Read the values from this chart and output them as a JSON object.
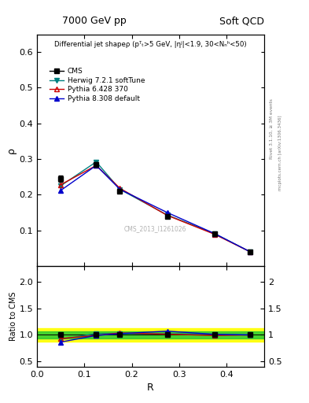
{
  "title_top": "7000 GeV pp",
  "title_right": "Soft QCD",
  "right_label_main": "Rivet 3.1.10, ≥ 3M events",
  "right_label_main2": "mcplots.cern.ch [arXiv:1306.3436]",
  "main_title": "Differential jet shapeρ (pᵀₜ>5 GeV, |ηʲ|<1.9, 30<Nₙʰ<50)",
  "xlabel": "R",
  "ylabel_main": "ρ",
  "ylabel_ratio": "Ratio to CMS",
  "watermark": "CMS_2013_I1261026",
  "x_values": [
    0.05,
    0.125,
    0.175,
    0.275,
    0.375,
    0.45
  ],
  "cms_y": [
    0.245,
    0.285,
    0.21,
    0.14,
    0.09,
    0.04
  ],
  "cms_yerr": [
    0.008,
    0.006,
    0.005,
    0.004,
    0.003,
    0.003
  ],
  "herwig_y": [
    0.225,
    0.292,
    0.215,
    0.143,
    0.091,
    0.04
  ],
  "pythia6_y": [
    0.228,
    0.282,
    0.218,
    0.142,
    0.089,
    0.04
  ],
  "pythia8_y": [
    0.212,
    0.282,
    0.215,
    0.15,
    0.091,
    0.04
  ],
  "herwig_ratio": [
    0.918,
    1.025,
    1.024,
    1.021,
    1.011,
    1.0
  ],
  "pythia6_ratio": [
    0.931,
    0.99,
    1.038,
    1.014,
    0.989,
    1.0
  ],
  "pythia8_ratio": [
    0.865,
    0.99,
    1.024,
    1.071,
    1.011,
    1.0
  ],
  "cms_color": "#000000",
  "herwig_color": "#008080",
  "pythia6_color": "#cc0000",
  "pythia8_color": "#0000cc",
  "ylim_main": [
    0.0,
    0.65
  ],
  "ylim_ratio": [
    0.4,
    2.3
  ],
  "yticks_main": [
    0.1,
    0.2,
    0.3,
    0.4,
    0.5,
    0.6
  ],
  "yticks_ratio": [
    0.5,
    1.0,
    1.5,
    2.0
  ],
  "xlim": [
    0.0,
    0.48
  ],
  "band_yellow_low": 0.875,
  "band_yellow_high": 1.125,
  "band_green_low": 0.935,
  "band_green_high": 1.065
}
